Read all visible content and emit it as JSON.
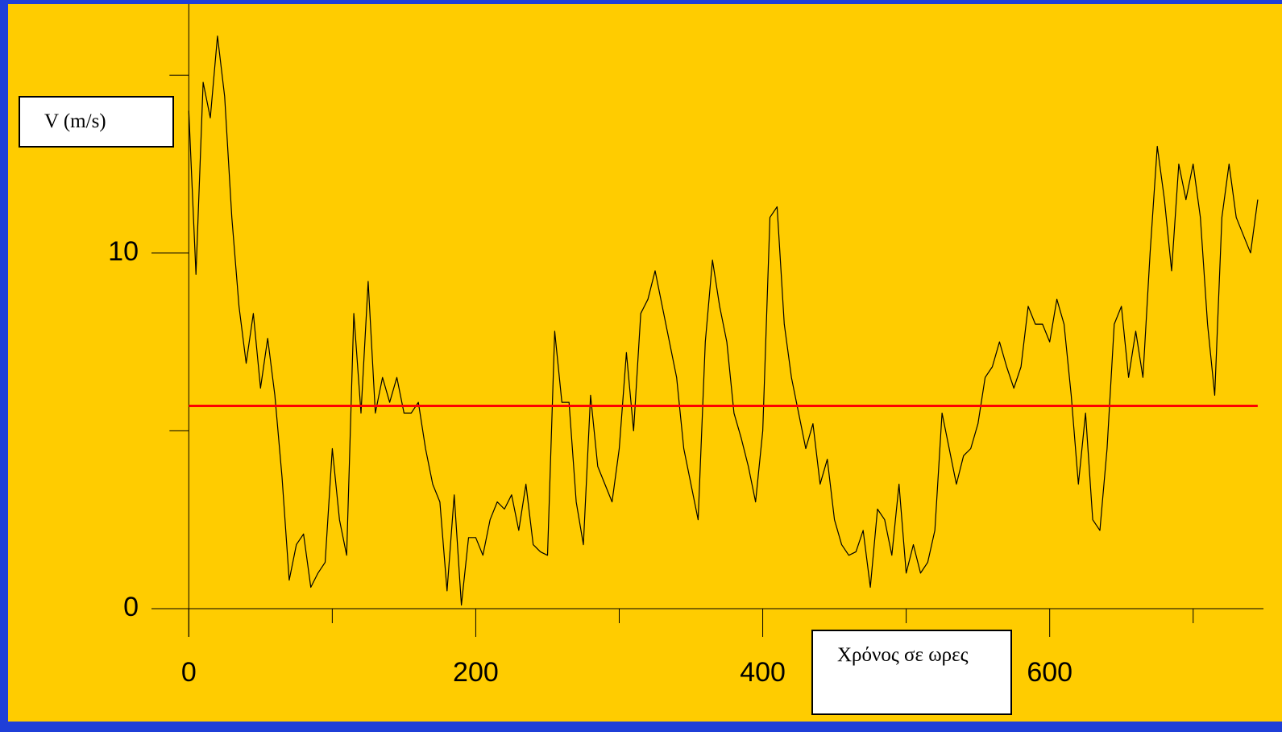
{
  "chart_data": {
    "type": "line",
    "y_label": "V (m/s)",
    "x_label": "Χρόνος σε ωρες",
    "xlim": [
      -26,
      749
    ],
    "ylim": [
      0,
      17
    ],
    "xticks": [
      0,
      200,
      400,
      600
    ],
    "xminor_ticks": [
      100,
      300,
      500,
      700
    ],
    "yticks": [
      0,
      10
    ],
    "yminor_ticks": [
      5,
      15
    ],
    "reference_line": {
      "value": 5.7,
      "color": "#ff0000"
    },
    "x": [
      0,
      5,
      10,
      15,
      20,
      25,
      30,
      35,
      40,
      45,
      50,
      55,
      60,
      65,
      70,
      75,
      80,
      85,
      90,
      95,
      100,
      105,
      110,
      115,
      120,
      125,
      130,
      135,
      140,
      145,
      150,
      155,
      160,
      165,
      170,
      175,
      180,
      185,
      190,
      195,
      200,
      205,
      210,
      215,
      220,
      225,
      230,
      235,
      240,
      245,
      250,
      255,
      260,
      265,
      270,
      275,
      280,
      285,
      290,
      295,
      300,
      305,
      310,
      315,
      320,
      325,
      330,
      335,
      340,
      345,
      350,
      355,
      360,
      365,
      370,
      375,
      380,
      385,
      390,
      395,
      400,
      405,
      410,
      415,
      420,
      425,
      430,
      435,
      440,
      445,
      450,
      455,
      460,
      465,
      470,
      475,
      480,
      485,
      490,
      495,
      500,
      505,
      510,
      515,
      520,
      525,
      530,
      535,
      540,
      545,
      550,
      555,
      560,
      565,
      570,
      575,
      580,
      585,
      590,
      595,
      600,
      605,
      610,
      615,
      620,
      625,
      630,
      635,
      640,
      645,
      650,
      655,
      660,
      665,
      670,
      675,
      680,
      685,
      690,
      695,
      700,
      705,
      710,
      715,
      720,
      725,
      730,
      735,
      740,
      745
    ],
    "series": [
      {
        "color": "#000000",
        "values": [
          14,
          9.4,
          14.8,
          13.8,
          16.1,
          14.4,
          11,
          8.5,
          6.9,
          8.3,
          6.2,
          7.6,
          6.0,
          3.7,
          0.8,
          1.8,
          2.1,
          0.6,
          1.0,
          1.3,
          4.5,
          2.5,
          1.5,
          8.3,
          5.5,
          9.2,
          5.5,
          6.5,
          5.8,
          6.5,
          5.5,
          5.5,
          5.8,
          4.5,
          3.5,
          3.0,
          0.5,
          3.2,
          0.1,
          2.0,
          2.0,
          1.5,
          2.5,
          3.0,
          2.8,
          3.2,
          2.2,
          3.5,
          1.8,
          1.6,
          1.5,
          7.8,
          5.8,
          5.8,
          3.0,
          1.8,
          6.0,
          4.0,
          3.5,
          3.0,
          4.5,
          7.2,
          5.0,
          8.3,
          8.7,
          9.5,
          8.5,
          7.5,
          6.5,
          4.5,
          3.5,
          2.5,
          7.5,
          9.8,
          8.5,
          7.5,
          5.5,
          4.8,
          4.0,
          3.0,
          5.0,
          11.0,
          11.3,
          8.0,
          6.5,
          5.5,
          4.5,
          5.2,
          3.5,
          4.2,
          2.5,
          1.8,
          1.5,
          1.6,
          2.2,
          0.6,
          2.8,
          2.5,
          1.5,
          3.5,
          1.0,
          1.8,
          1.0,
          1.3,
          2.2,
          5.5,
          4.5,
          3.5,
          4.3,
          4.5,
          5.2,
          6.5,
          6.8,
          7.5,
          6.8,
          6.2,
          6.8,
          8.5,
          8.0,
          8.0,
          7.5,
          8.7,
          8.0,
          6.0,
          3.5,
          5.5,
          2.5,
          2.2,
          4.5,
          8.0,
          8.5,
          6.5,
          7.8,
          6.5,
          10.0,
          13.0,
          11.5,
          9.5,
          12.5,
          11.5,
          12.5,
          11.0,
          8.0,
          6.0,
          11.0,
          12.5,
          11.0,
          10.5,
          10.0,
          11.5
        ]
      }
    ]
  }
}
